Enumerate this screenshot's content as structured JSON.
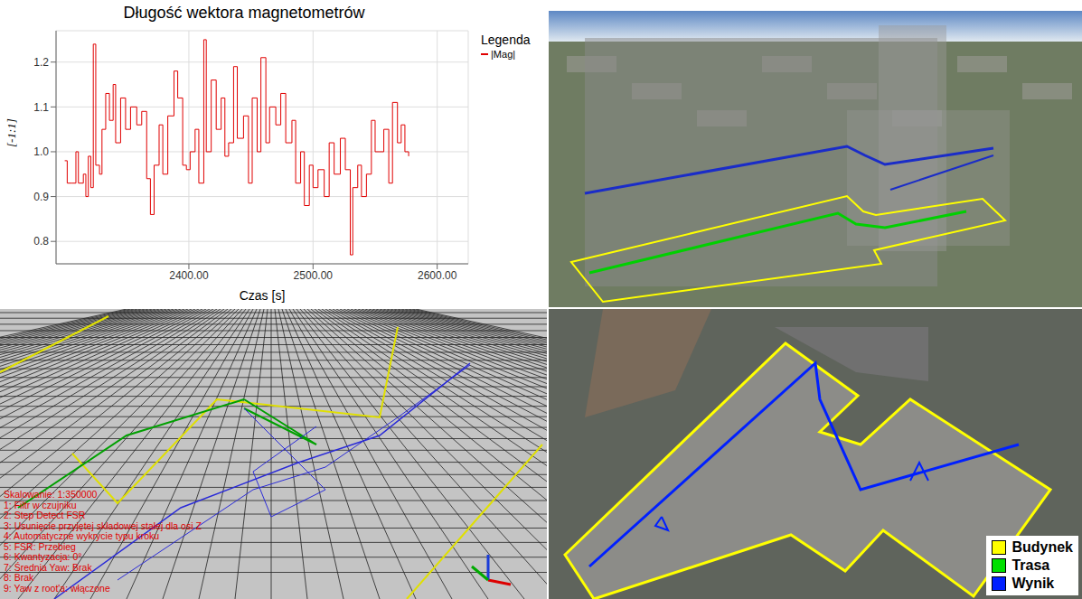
{
  "chart_data": {
    "type": "line",
    "title": "Długość wektora magnetometrów",
    "x_label": "Czas [s]",
    "y_label": "[-1:1]",
    "legend_title": "Legenda",
    "legend": "right",
    "grid": true,
    "xlim": [
      2293,
      2625
    ],
    "xticks": [
      {
        "value": 2400,
        "label": "2400.00"
      },
      {
        "value": 2500,
        "label": "2500.00"
      },
      {
        "value": 2600,
        "label": "2600.00"
      }
    ],
    "ylim": [
      0.75,
      1.27
    ],
    "yticks": [
      0.8,
      0.9,
      {
        "value": 1,
        "label": "1.0"
      },
      1.1,
      1.2
    ],
    "x": [
      2300,
      2302,
      2306,
      2309,
      2311,
      2315,
      2317,
      2319,
      2321,
      2323,
      2325,
      2328,
      2330,
      2333,
      2336,
      2339,
      2341,
      2345,
      2349,
      2353,
      2358,
      2362,
      2366,
      2369,
      2372,
      2376,
      2379,
      2383,
      2388,
      2391,
      2395,
      2398,
      2401,
      2405,
      2408,
      2412,
      2414,
      2418,
      2422,
      2426,
      2429,
      2432,
      2436,
      2439,
      2444,
      2448,
      2451,
      2455,
      2458,
      2462,
      2465,
      2470,
      2474,
      2478,
      2483,
      2486,
      2490,
      2493,
      2497,
      2500,
      2504,
      2509,
      2513,
      2517,
      2522,
      2526,
      2530,
      2532,
      2536,
      2539,
      2543,
      2547,
      2550,
      2553,
      2557,
      2561,
      2564,
      2568,
      2571,
      2574,
      2577
    ],
    "series": [
      {
        "name": "|Mag|",
        "color": "#e00000",
        "line_style": "solid",
        "values": [
          0.98,
          0.93,
          0.93,
          1.0,
          0.93,
          0.95,
          0.9,
          0.99,
          0.92,
          1.24,
          0.97,
          0.95,
          1.05,
          1.13,
          1.07,
          1.15,
          1.02,
          1.12,
          1.05,
          1.1,
          1.06,
          1.09,
          0.94,
          0.86,
          0.97,
          1.06,
          0.95,
          1.08,
          1.18,
          1.12,
          0.97,
          0.96,
          1.0,
          1.05,
          0.93,
          1.25,
          1.0,
          1.16,
          1.05,
          1.12,
          0.99,
          1.02,
          1.19,
          1.03,
          1.08,
          0.93,
          1.12,
          1.0,
          1.21,
          1.02,
          1.1,
          1.06,
          1.13,
          1.02,
          1.07,
          0.93,
          1.0,
          0.88,
          0.97,
          0.92,
          0.96,
          0.9,
          1.02,
          0.95,
          1.03,
          0.96,
          0.77,
          0.92,
          0.97,
          0.9,
          0.95,
          1.07,
          1.0,
          1.0,
          1.05,
          0.93,
          1.11,
          1.02,
          1.06,
          1.0,
          0.99
        ]
      }
    ]
  },
  "grid_view": {
    "overlay_text": [
      "Skalowanie: 1:350000",
      "1: Filtr w czujniku",
      "2: Step Detect FSR",
      "3: Usunięcie przyjętej składowej stałej dla osi Z",
      "4: Automatyczne wykrycie typu kroku",
      "5: FSR: Przebieg",
      "6: Kwantyzacja: 0°",
      "7: Średnia Yaw: Brak",
      "8: Brak",
      "9: Yaw z root'a: włączone"
    ]
  },
  "map_legend": [
    {
      "label": "Budynek",
      "color": "#ffff00"
    },
    {
      "label": "Trasa",
      "color": "#00e000"
    },
    {
      "label": "Wynik",
      "color": "#0020ff"
    }
  ]
}
